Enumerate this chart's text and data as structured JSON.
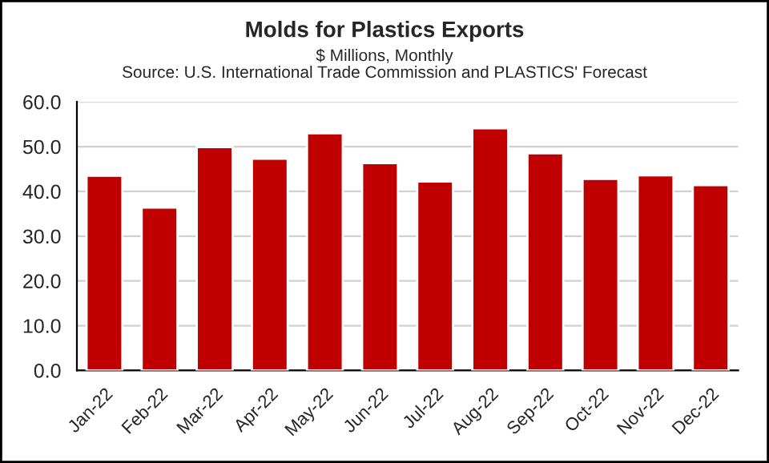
{
  "chart_data": {
    "type": "bar",
    "title": "Molds for Plastics Exports",
    "subtitle": "$ Millions, Monthly\nSource: U.S. International Trade Commission and PLASTICS' Forecast",
    "categories": [
      "Jan-22",
      "Feb-22",
      "Mar-22",
      "Apr-22",
      "May-22",
      "Jun-22",
      "Jul-22",
      "Aug-22",
      "Sep-22",
      "Oct-22",
      "Nov-22",
      "Dec-22"
    ],
    "values": [
      43.5,
      36.4,
      49.9,
      47.3,
      53.0,
      46.3,
      42.2,
      54.1,
      48.5,
      42.8,
      43.6,
      41.4
    ],
    "color": "#c00000",
    "ylim": [
      0,
      60
    ],
    "yticks": [
      {
        "value": 0,
        "label": "0.0"
      },
      {
        "value": 10,
        "label": "10.0"
      },
      {
        "value": 20,
        "label": "20.0"
      },
      {
        "value": 30,
        "label": "30.0"
      },
      {
        "value": 40,
        "label": "40.0"
      },
      {
        "value": 50,
        "label": "50.0"
      },
      {
        "value": 60,
        "label": "60.0"
      }
    ],
    "grid": "y",
    "legend": false
  }
}
